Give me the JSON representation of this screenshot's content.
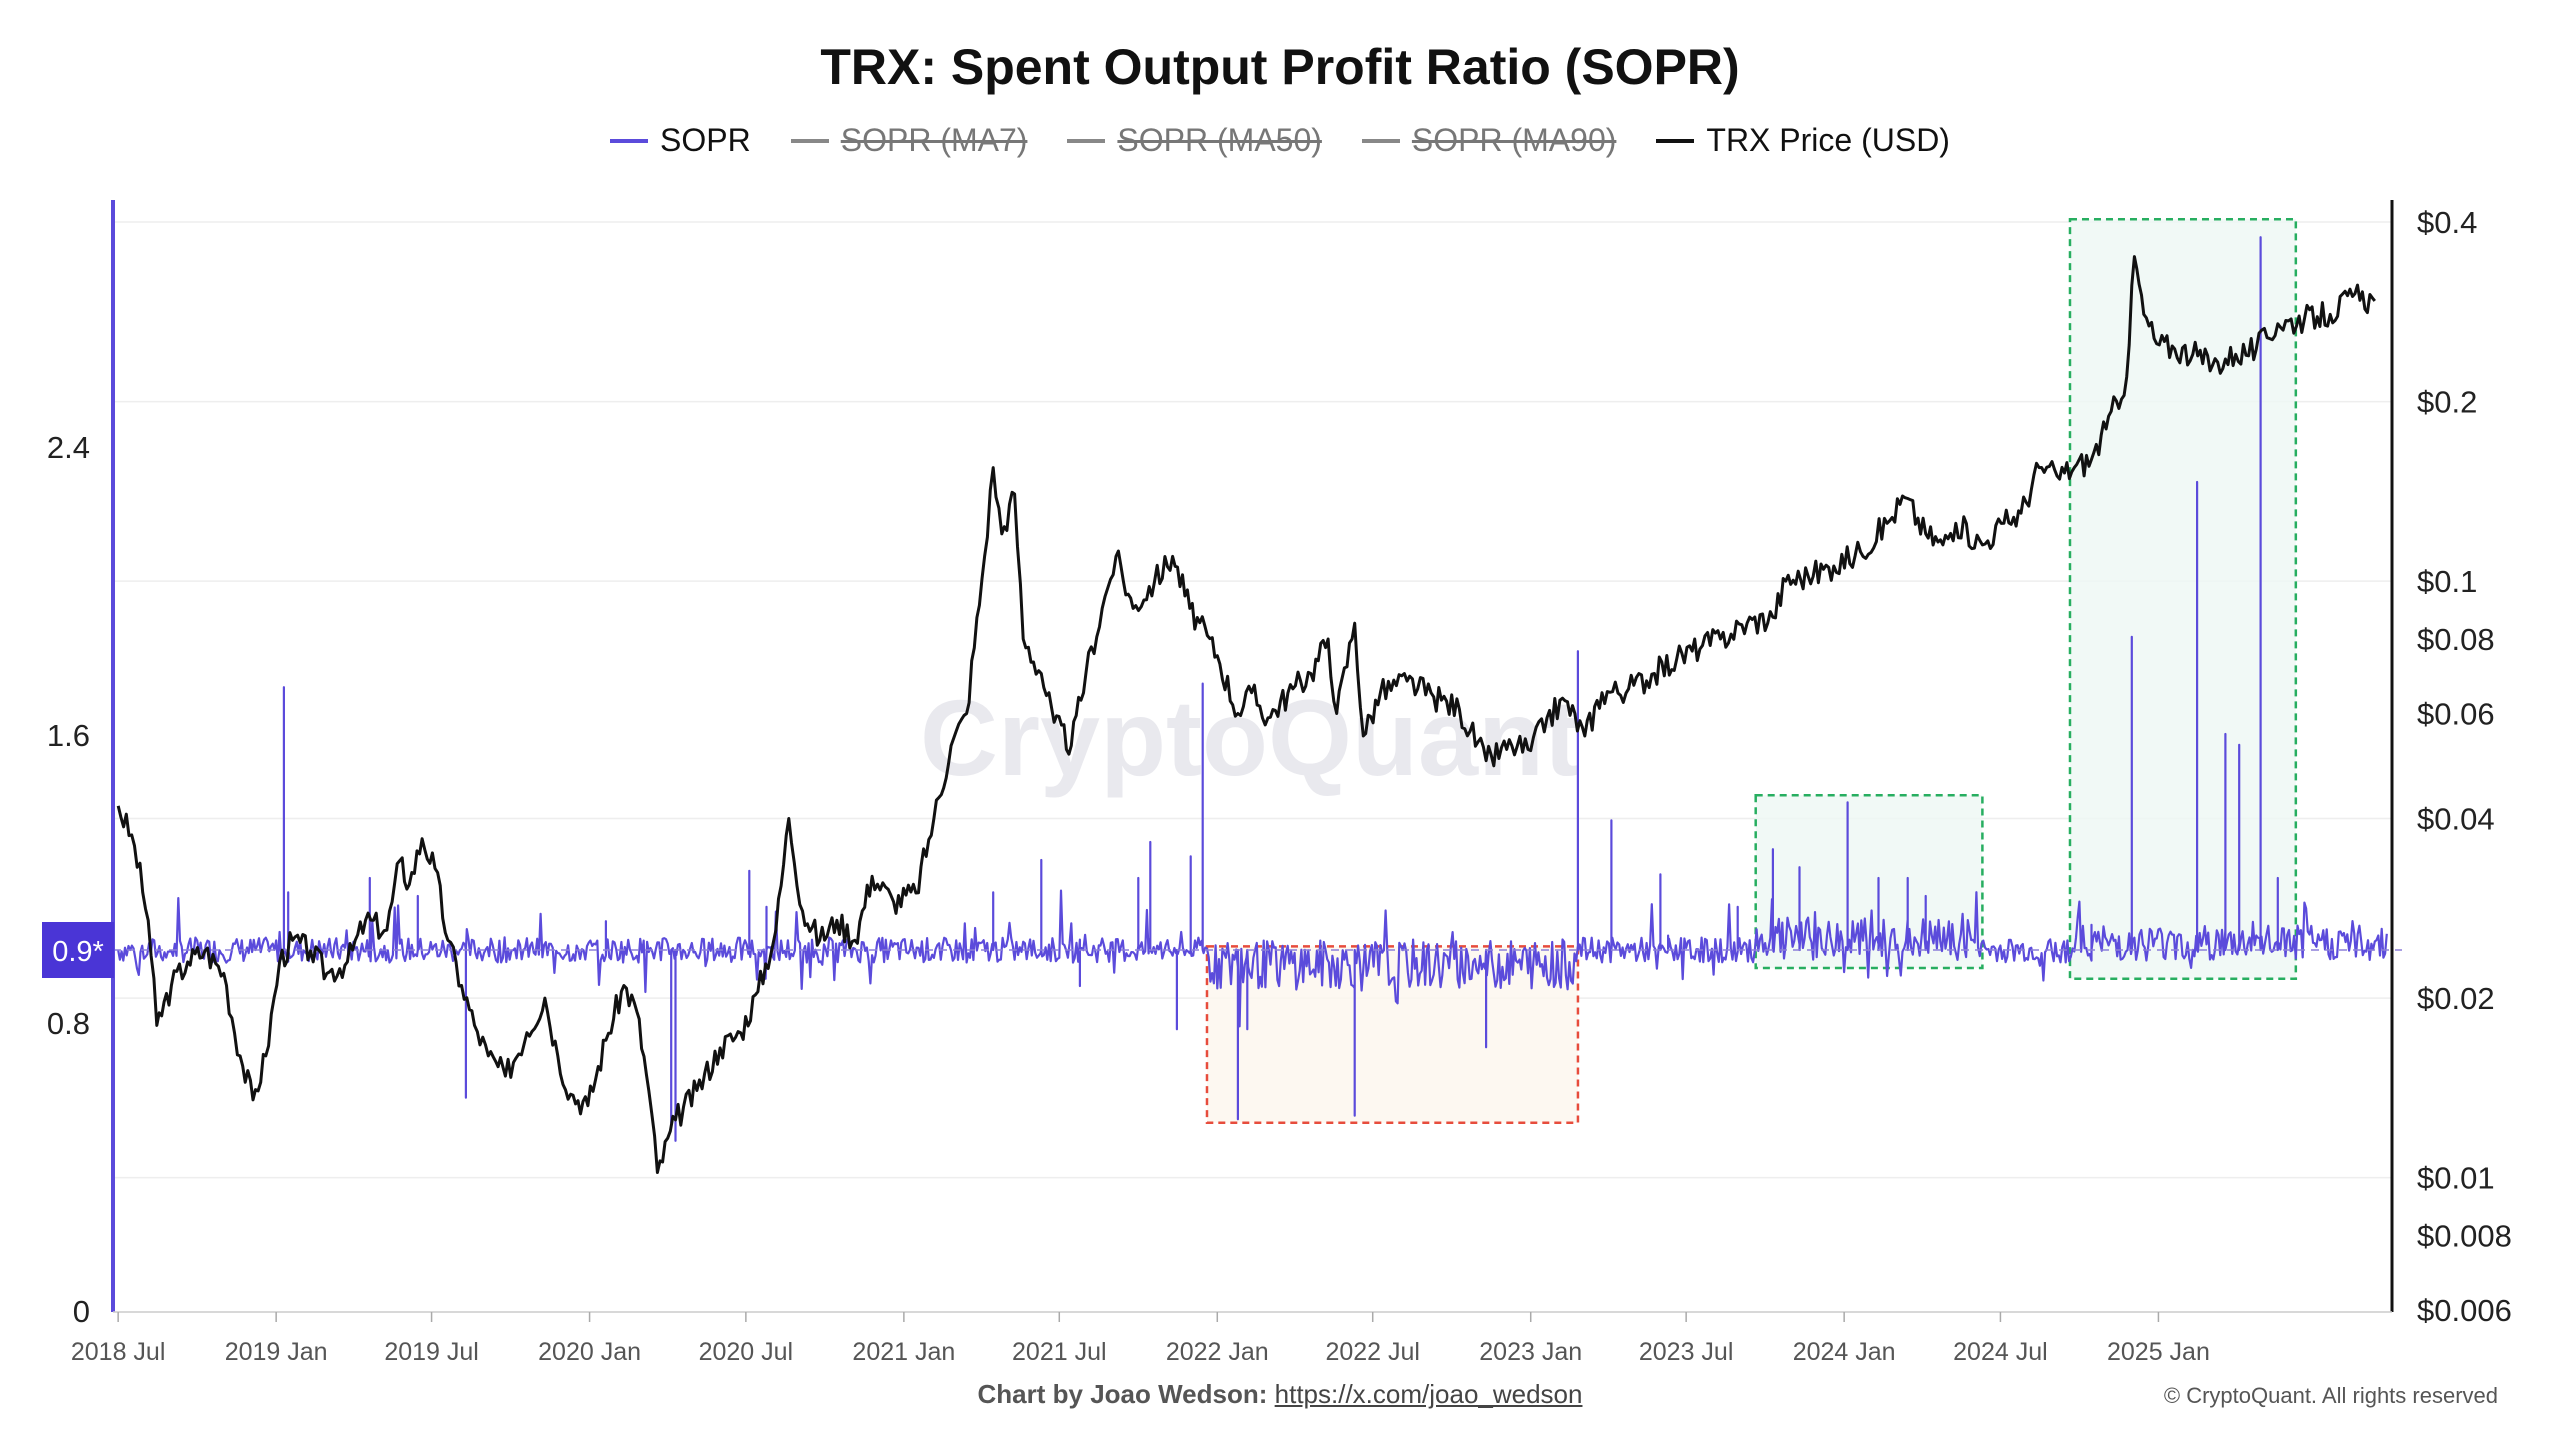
{
  "title": "TRX: Spent Output Profit Ratio (SOPR)",
  "legend": [
    {
      "label": "SOPR",
      "color": "#5b4bdb",
      "enabled": true
    },
    {
      "label": "SOPR (MA7)",
      "color": "#888888",
      "enabled": false
    },
    {
      "label": "SOPR (MA50)",
      "color": "#888888",
      "enabled": false
    },
    {
      "label": "SOPR (MA90)",
      "color": "#888888",
      "enabled": false
    },
    {
      "label": "TRX Price (USD)",
      "color": "#111111",
      "enabled": true
    }
  ],
  "watermark": "CryptoQuant",
  "footer": {
    "credit_prefix": "Chart by Joao Wedson:",
    "credit_link": "https://x.com/joao_wedson",
    "copyright": "© CryptoQuant. All rights reserved"
  },
  "chart_data": {
    "type": "line",
    "x_ticks": [
      "2018 Jul",
      "2019 Jan",
      "2019 Jul",
      "2020 Jan",
      "2020 Jul",
      "2021 Jan",
      "2021 Jul",
      "2022 Jan",
      "2022 Jul",
      "2023 Jan",
      "2023 Jul",
      "2024 Jan",
      "2024 Jul",
      "2025 Jan"
    ],
    "x_range": [
      "2018-06-25",
      "2025-09-30"
    ],
    "left_axis": {
      "ticks": [
        "0",
        "0.8",
        "1.6",
        "2.4"
      ],
      "ylim": [
        0,
        3.0
      ],
      "color": "#5b4bdb"
    },
    "right_axis": {
      "scale": "log",
      "ticks": [
        "$0.006",
        "$0.008",
        "$0.01",
        "$0.02",
        "$0.04",
        "$0.06",
        "$0.08",
        "$0.1",
        "$0.2",
        "$0.4"
      ],
      "ylim": [
        0.006,
        0.4
      ]
    },
    "current_value_badge": "0.9*",
    "reference_line": 1.0,
    "series": [
      {
        "name": "TRX Price (USD)",
        "axis": "right",
        "color": "#111111",
        "points": [
          [
            "2018-07-01",
            0.042
          ],
          [
            "2018-07-20",
            0.036
          ],
          [
            "2018-08-05",
            0.027
          ],
          [
            "2018-08-15",
            0.018
          ],
          [
            "2018-09-01",
            0.021
          ],
          [
            "2018-09-20",
            0.023
          ],
          [
            "2018-10-10",
            0.024
          ],
          [
            "2018-11-01",
            0.022
          ],
          [
            "2018-11-20",
            0.016
          ],
          [
            "2018-12-05",
            0.0135
          ],
          [
            "2018-12-20",
            0.016
          ],
          [
            "2019-01-05",
            0.023
          ],
          [
            "2019-01-20",
            0.025
          ],
          [
            "2019-02-10",
            0.024
          ],
          [
            "2019-03-01",
            0.022
          ],
          [
            "2019-03-25",
            0.023
          ],
          [
            "2019-04-15",
            0.027
          ],
          [
            "2019-05-10",
            0.026
          ],
          [
            "2019-05-25",
            0.034
          ],
          [
            "2019-06-05",
            0.031
          ],
          [
            "2019-06-20",
            0.037
          ],
          [
            "2019-07-05",
            0.033
          ],
          [
            "2019-07-20",
            0.025
          ],
          [
            "2019-08-05",
            0.021
          ],
          [
            "2019-08-20",
            0.018
          ],
          [
            "2019-09-05",
            0.016
          ],
          [
            "2019-09-25",
            0.0148
          ],
          [
            "2019-10-20",
            0.0175
          ],
          [
            "2019-11-10",
            0.02
          ],
          [
            "2019-11-25",
            0.016
          ],
          [
            "2019-12-10",
            0.0138
          ],
          [
            "2019-12-30",
            0.0132
          ],
          [
            "2020-01-20",
            0.017
          ],
          [
            "2020-02-10",
            0.021
          ],
          [
            "2020-02-25",
            0.019
          ],
          [
            "2020-03-10",
            0.014
          ],
          [
            "2020-03-20",
            0.0102
          ],
          [
            "2020-04-10",
            0.0125
          ],
          [
            "2020-05-05",
            0.014
          ],
          [
            "2020-06-01",
            0.0165
          ],
          [
            "2020-06-25",
            0.0175
          ],
          [
            "2020-07-15",
            0.0205
          ],
          [
            "2020-08-05",
            0.026
          ],
          [
            "2020-08-20",
            0.04
          ],
          [
            "2020-09-05",
            0.028
          ],
          [
            "2020-09-25",
            0.025
          ],
          [
            "2020-10-15",
            0.027
          ],
          [
            "2020-11-05",
            0.025
          ],
          [
            "2020-11-25",
            0.032
          ],
          [
            "2020-12-20",
            0.029
          ],
          [
            "2021-01-15",
            0.03
          ],
          [
            "2021-02-05",
            0.04
          ],
          [
            "2021-02-25",
            0.053
          ],
          [
            "2021-03-15",
            0.06
          ],
          [
            "2021-04-05",
            0.11
          ],
          [
            "2021-04-15",
            0.155
          ],
          [
            "2021-04-25",
            0.12
          ],
          [
            "2021-05-10",
            0.14
          ],
          [
            "2021-05-20",
            0.08
          ],
          [
            "2021-06-10",
            0.07
          ],
          [
            "2021-06-25",
            0.058
          ],
          [
            "2021-07-15",
            0.053
          ],
          [
            "2021-08-01",
            0.07
          ],
          [
            "2021-08-20",
            0.09
          ],
          [
            "2021-09-05",
            0.11
          ],
          [
            "2021-09-25",
            0.09
          ],
          [
            "2021-10-20",
            0.1
          ],
          [
            "2021-11-10",
            0.11
          ],
          [
            "2021-11-30",
            0.09
          ],
          [
            "2022-01-01",
            0.075
          ],
          [
            "2022-01-25",
            0.06
          ],
          [
            "2022-02-10",
            0.065
          ],
          [
            "2022-03-01",
            0.059
          ],
          [
            "2022-03-30",
            0.066
          ],
          [
            "2022-04-20",
            0.07
          ],
          [
            "2022-05-10",
            0.08
          ],
          [
            "2022-05-20",
            0.06
          ],
          [
            "2022-06-10",
            0.085
          ],
          [
            "2022-06-20",
            0.055
          ],
          [
            "2022-07-10",
            0.065
          ],
          [
            "2022-08-10",
            0.068
          ],
          [
            "2022-09-10",
            0.064
          ],
          [
            "2022-10-10",
            0.061
          ],
          [
            "2022-11-10",
            0.05
          ],
          [
            "2022-12-10",
            0.053
          ],
          [
            "2023-01-01",
            0.052
          ],
          [
            "2023-01-20",
            0.059
          ],
          [
            "2023-02-10",
            0.063
          ],
          [
            "2023-03-05",
            0.055
          ],
          [
            "2023-03-25",
            0.065
          ],
          [
            "2023-04-25",
            0.066
          ],
          [
            "2023-05-25",
            0.07
          ],
          [
            "2023-06-20",
            0.074
          ],
          [
            "2023-07-20",
            0.078
          ],
          [
            "2023-08-10",
            0.08
          ],
          [
            "2023-09-10",
            0.085
          ],
          [
            "2023-10-10",
            0.087
          ],
          [
            "2023-10-25",
            0.1
          ],
          [
            "2023-11-20",
            0.102
          ],
          [
            "2023-12-20",
            0.106
          ],
          [
            "2024-01-20",
            0.112
          ],
          [
            "2024-02-20",
            0.125
          ],
          [
            "2024-03-12",
            0.138
          ],
          [
            "2024-04-05",
            0.12
          ],
          [
            "2024-04-25",
            0.115
          ],
          [
            "2024-05-10",
            0.125
          ],
          [
            "2024-06-10",
            0.115
          ],
          [
            "2024-07-05",
            0.125
          ],
          [
            "2024-07-25",
            0.13
          ],
          [
            "2024-08-15",
            0.155
          ],
          [
            "2024-09-05",
            0.15
          ],
          [
            "2024-09-25",
            0.155
          ],
          [
            "2024-10-15",
            0.16
          ],
          [
            "2024-11-01",
            0.18
          ],
          [
            "2024-11-25",
            0.22
          ],
          [
            "2024-12-04",
            0.35
          ],
          [
            "2024-12-15",
            0.28
          ],
          [
            "2024-12-30",
            0.25
          ],
          [
            "2025-01-20",
            0.245
          ],
          [
            "2025-02-10",
            0.24
          ],
          [
            "2025-03-05",
            0.23
          ],
          [
            "2025-04-01",
            0.24
          ],
          [
            "2025-04-25",
            0.245
          ],
          [
            "2025-05-20",
            0.27
          ],
          [
            "2025-06-20",
            0.275
          ],
          [
            "2025-07-20",
            0.28
          ],
          [
            "2025-08-15",
            0.3
          ],
          [
            "2025-09-10",
            0.295
          ]
        ]
      },
      {
        "name": "SOPR",
        "axis": "left",
        "color": "#5b4bdb",
        "baseline": 1.0,
        "spikes": [
          [
            "2019-01-10",
            1.73
          ],
          [
            "2019-01-15",
            1.16
          ],
          [
            "2019-04-20",
            1.2
          ],
          [
            "2019-06-15",
            1.15
          ],
          [
            "2019-08-10",
            0.59
          ],
          [
            "2020-01-20",
            1.08
          ],
          [
            "2020-04-05",
            0.52
          ],
          [
            "2020-04-10",
            0.47
          ],
          [
            "2020-07-25",
            1.12
          ],
          [
            "2020-07-05",
            1.22
          ],
          [
            "2021-04-15",
            1.16
          ],
          [
            "2021-06-10",
            1.25
          ],
          [
            "2021-07-25",
            0.9
          ],
          [
            "2021-10-01",
            1.2
          ],
          [
            "2021-10-15",
            1.3
          ],
          [
            "2021-11-15",
            0.78
          ],
          [
            "2021-12-01",
            1.26
          ],
          [
            "2021-12-15",
            1.74
          ],
          [
            "2022-01-25",
            0.53
          ],
          [
            "2022-02-05",
            0.78
          ],
          [
            "2022-06-10",
            0.54
          ],
          [
            "2022-11-10",
            0.73
          ],
          [
            "2023-02-25",
            1.83
          ],
          [
            "2023-04-05",
            1.36
          ],
          [
            "2023-06-01",
            1.21
          ],
          [
            "2023-06-10",
            1.04
          ],
          [
            "2023-08-30",
            1.12
          ],
          [
            "2023-10-10",
            1.28
          ],
          [
            "2023-11-10",
            1.23
          ],
          [
            "2024-01-05",
            1.41
          ],
          [
            "2024-02-10",
            1.2
          ],
          [
            "2024-03-15",
            1.2
          ],
          [
            "2024-04-05",
            1.15
          ],
          [
            "2024-10-15",
            1.07
          ],
          [
            "2024-11-15",
            1.02
          ],
          [
            "2024-12-01",
            1.87
          ],
          [
            "2025-02-15",
            2.3
          ],
          [
            "2025-03-20",
            1.6
          ],
          [
            "2025-04-05",
            1.57
          ],
          [
            "2025-04-30",
            2.98
          ],
          [
            "2025-05-20",
            1.2
          ]
        ]
      }
    ],
    "highlight_boxes": [
      {
        "kind": "loss",
        "x_start": "2021-12-20",
        "x_end": "2023-02-25",
        "y_low": 0.52,
        "y_high": 1.01,
        "color": "#e74c3c"
      },
      {
        "kind": "profit",
        "x_start": "2023-09-20",
        "x_end": "2024-06-10",
        "y_low": 0.95,
        "y_high": 1.43,
        "color": "#27ae60"
      },
      {
        "kind": "profit",
        "x_start": "2024-09-20",
        "x_end": "2025-06-10",
        "y_low": 0.92,
        "y_high": 3.03,
        "color": "#27ae60"
      }
    ]
  }
}
